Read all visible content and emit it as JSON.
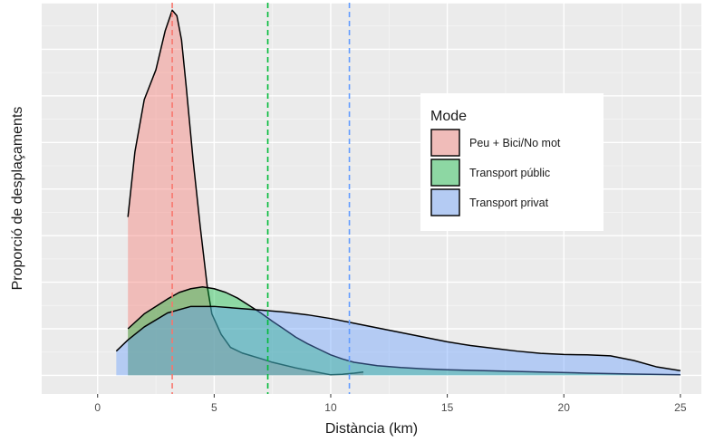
{
  "chart_data": {
    "type": "area",
    "xlabel": "Distància (km)",
    "ylabel": "Proporció de desplaçaments",
    "xlim": [
      -2.4,
      25.9
    ],
    "ylim": [
      -0.01,
      0.2
    ],
    "x_ticks": [
      0,
      5,
      10,
      15,
      20,
      25
    ],
    "x_tick_labels": [
      "0",
      "5",
      "10",
      "15",
      "20",
      "25"
    ],
    "grid": true,
    "legend": {
      "title": "Mode",
      "placement": "right-inside"
    },
    "series": [
      {
        "name": "Peu + Bici/No mot",
        "color": "#f8766d",
        "points": [
          [
            1.3,
            0.085
          ],
          [
            1.6,
            0.12
          ],
          [
            2.0,
            0.148
          ],
          [
            2.5,
            0.164
          ],
          [
            2.9,
            0.185
          ],
          [
            3.2,
            0.196
          ],
          [
            3.4,
            0.193
          ],
          [
            3.6,
            0.18
          ],
          [
            3.8,
            0.155
          ],
          [
            4.1,
            0.115
          ],
          [
            4.4,
            0.08
          ],
          [
            4.7,
            0.048
          ],
          [
            4.9,
            0.033
          ],
          [
            5.3,
            0.022
          ],
          [
            5.7,
            0.015
          ],
          [
            6.2,
            0.012
          ],
          [
            7.0,
            0.009
          ],
          [
            7.5,
            0.007
          ],
          [
            8.5,
            0.004
          ],
          [
            9.5,
            0.0015
          ],
          [
            10.0,
            0.0003
          ],
          [
            10.5,
            0.0006
          ],
          [
            11.0,
            0.0012
          ],
          [
            11.4,
            0.0018
          ]
        ],
        "mean": 3.2
      },
      {
        "name": "Transport públic",
        "color": "#00ba38",
        "points": [
          [
            1.3,
            0.025
          ],
          [
            2.0,
            0.033
          ],
          [
            3.0,
            0.041
          ],
          [
            3.5,
            0.0445
          ],
          [
            4.0,
            0.0465
          ],
          [
            4.5,
            0.0475
          ],
          [
            5.0,
            0.0465
          ],
          [
            5.5,
            0.0445
          ],
          [
            6.0,
            0.0415
          ],
          [
            6.5,
            0.0375
          ],
          [
            7.0,
            0.0335
          ],
          [
            7.5,
            0.029
          ],
          [
            8.0,
            0.0248
          ],
          [
            8.5,
            0.0205
          ],
          [
            9.0,
            0.017
          ],
          [
            9.5,
            0.014
          ],
          [
            10.0,
            0.011
          ],
          [
            10.5,
            0.0088
          ],
          [
            11.0,
            0.007
          ],
          [
            12.0,
            0.0052
          ],
          [
            13.0,
            0.0042
          ],
          [
            14.0,
            0.0035
          ],
          [
            15.0,
            0.003
          ],
          [
            17.0,
            0.0024
          ],
          [
            19.0,
            0.0018
          ],
          [
            21.0,
            0.0012
          ],
          [
            23.0,
            0.0007
          ],
          [
            25.0,
            0.0003
          ]
        ],
        "mean": 7.3
      },
      {
        "name": "Transport privat",
        "color": "#619cff",
        "points": [
          [
            0.8,
            0.013
          ],
          [
            1.3,
            0.019
          ],
          [
            2.0,
            0.026
          ],
          [
            3.0,
            0.0335
          ],
          [
            4.0,
            0.037
          ],
          [
            5.0,
            0.037
          ],
          [
            6.0,
            0.036
          ],
          [
            7.0,
            0.035
          ],
          [
            8.0,
            0.034
          ],
          [
            9.0,
            0.0325
          ],
          [
            10.0,
            0.0305
          ],
          [
            11.0,
            0.028
          ],
          [
            12.0,
            0.0255
          ],
          [
            13.0,
            0.023
          ],
          [
            14.0,
            0.0205
          ],
          [
            15.0,
            0.018
          ],
          [
            16.0,
            0.016
          ],
          [
            17.0,
            0.0145
          ],
          [
            18.0,
            0.013
          ],
          [
            19.0,
            0.0118
          ],
          [
            20.0,
            0.0112
          ],
          [
            21.0,
            0.011
          ],
          [
            22.0,
            0.0105
          ],
          [
            23.0,
            0.008
          ],
          [
            24.0,
            0.0045
          ],
          [
            25.0,
            0.0025
          ]
        ],
        "mean": 10.8
      }
    ]
  }
}
